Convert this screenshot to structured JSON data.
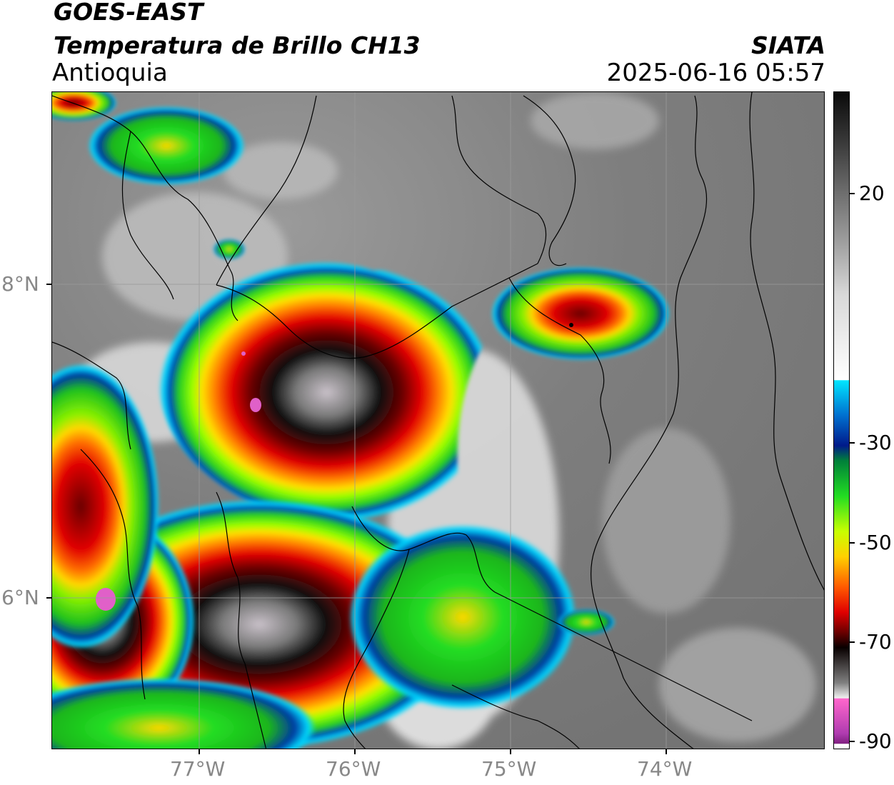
{
  "header": {
    "satellite": "GOES-EAST",
    "product": "Temperatura de Brillo CH13",
    "region": "Antioquia",
    "agency": "SIATA",
    "timestamp": "2025-06-16 05:57"
  },
  "map": {
    "lon_range": [
      -77.97,
      -72.98
    ],
    "lat_range": [
      5.03,
      9.22
    ],
    "lon_ticks": [
      {
        "value": -77,
        "label": "77°W"
      },
      {
        "value": -76,
        "label": "76°W"
      },
      {
        "value": -75,
        "label": "75°W"
      },
      {
        "value": -74,
        "label": "74°W"
      }
    ],
    "lat_ticks": [
      {
        "value": 8,
        "label": "8°N"
      },
      {
        "value": 6,
        "label": "6°N"
      }
    ],
    "gridlines": true,
    "background_color": "#8a8a8a"
  },
  "colorbar": {
    "range": [
      -90,
      40
    ],
    "ticks": [
      {
        "value": 20,
        "label": "20"
      },
      {
        "value": -30,
        "label": "-30"
      },
      {
        "value": -50,
        "label": "-50"
      },
      {
        "value": -70,
        "label": "-70"
      },
      {
        "value": -90,
        "label": "-90"
      }
    ],
    "stops": [
      {
        "value": 40,
        "color": "#0a0a0a"
      },
      {
        "value": 30,
        "color": "#3a3a3a"
      },
      {
        "value": 20,
        "color": "#6e6e6e"
      },
      {
        "value": 10,
        "color": "#a0a0a0"
      },
      {
        "value": 0,
        "color": "#d8d8d8"
      },
      {
        "value": -17,
        "color": "#ffffff"
      },
      {
        "value": -17.1,
        "color": "#00e5ff"
      },
      {
        "value": -24,
        "color": "#0070d0"
      },
      {
        "value": -30,
        "color": "#001a8a"
      },
      {
        "value": -33,
        "color": "#00803a"
      },
      {
        "value": -40,
        "color": "#22dd22"
      },
      {
        "value": -47,
        "color": "#c8ff00"
      },
      {
        "value": -52,
        "color": "#ffd000"
      },
      {
        "value": -58,
        "color": "#ff5a00"
      },
      {
        "value": -63,
        "color": "#e00000"
      },
      {
        "value": -67,
        "color": "#6a0000"
      },
      {
        "value": -70,
        "color": "#080000"
      },
      {
        "value": -77,
        "color": "#808080"
      },
      {
        "value": -80,
        "color": "#f0f0f0"
      },
      {
        "value": -80.1,
        "color": "#ff66cc"
      },
      {
        "value": -87,
        "color": "#b03cb0"
      },
      {
        "value": -89,
        "color": "#802080"
      },
      {
        "value": -89.1,
        "color": "#ffffff"
      },
      {
        "value": -90,
        "color": "#ffffff"
      }
    ]
  }
}
